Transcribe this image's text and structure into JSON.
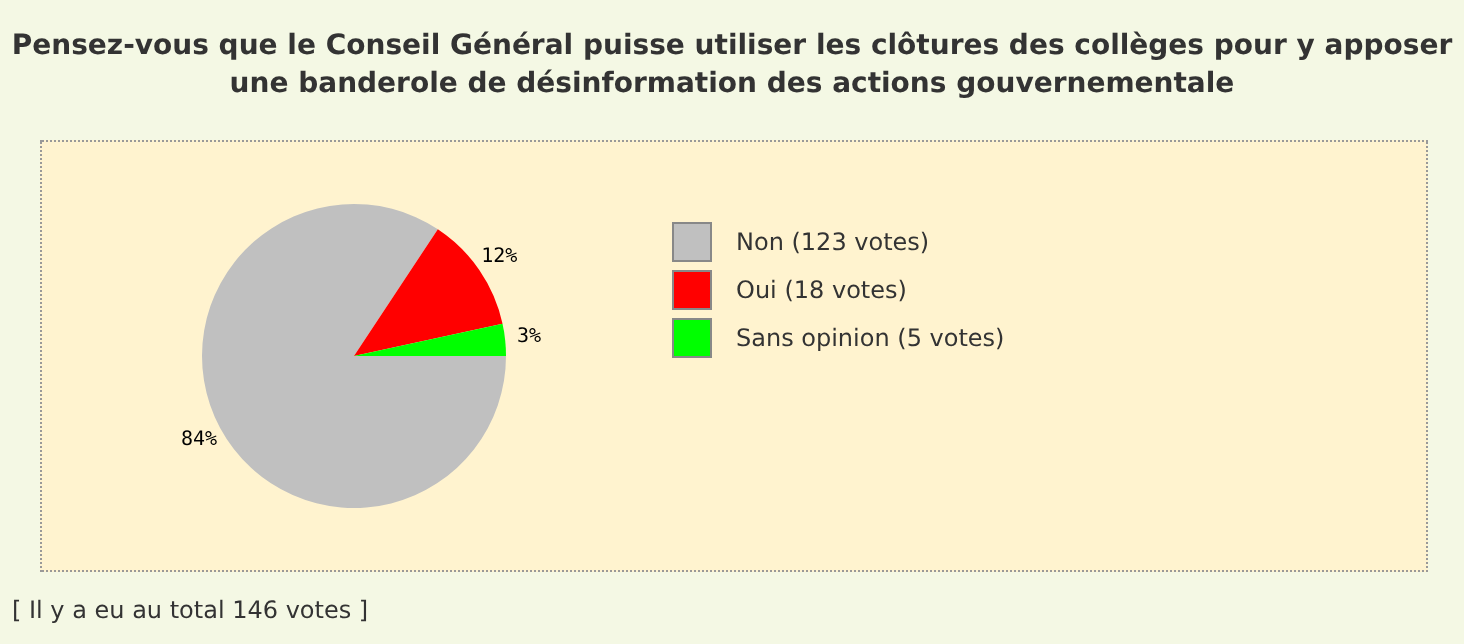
{
  "chart_data": {
    "type": "pie",
    "title": "Pensez-vous que le Conseil Général puisse utiliser les clôtures des collèges pour y apposer une banderole de désinformation des actions gouvernementale",
    "categories": [
      "Non (123 votes)",
      "Oui (18 votes)",
      "Sans opinion (5 votes)"
    ],
    "values": [
      84.3,
      12.3,
      3.4
    ],
    "colors": [
      "#c0c0c0",
      "#ff0000",
      "#00ff00"
    ],
    "value_labels": [
      "84%",
      "12%",
      "3%"
    ],
    "legend": "right",
    "annotations": [
      "[ Il y a eu au total 146 votes ]"
    ]
  }
}
